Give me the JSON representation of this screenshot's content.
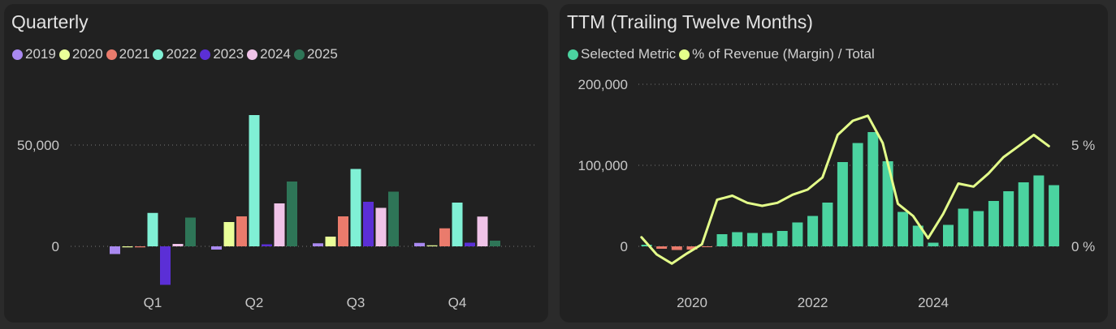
{
  "colors": {
    "2019": "#a989f0",
    "2020": "#eaff99",
    "2021": "#ea7b6c",
    "2022": "#80f0d5",
    "2023": "#5b2fd6",
    "2024": "#f0c3e8",
    "2025": "#2e7557",
    "metric": "#4bd3a0",
    "metric_negative": "#ea7b6c",
    "margin": "#e4ff8a",
    "grid": "#777777"
  },
  "quarterly": {
    "title": "Quarterly",
    "legend": [
      "2019",
      "2020",
      "2021",
      "2022",
      "2023",
      "2024",
      "2025"
    ]
  },
  "ttm": {
    "title": "TTM (Trailing Twelve Months)",
    "legend": [
      "Selected Metric",
      "% of Revenue (Margin) / Total"
    ]
  },
  "chart_data": [
    {
      "type": "bar",
      "title": "Quarterly",
      "categories": [
        "Q1",
        "Q2",
        "Q3",
        "Q4"
      ],
      "series": [
        {
          "name": "2019",
          "values": [
            -3800,
            -1600,
            1500,
            1700
          ]
        },
        {
          "name": "2020",
          "values": [
            -500,
            12000,
            4800,
            500
          ]
        },
        {
          "name": "2021",
          "values": [
            -500,
            14800,
            14800,
            8900
          ]
        },
        {
          "name": "2022",
          "values": [
            16500,
            64800,
            38200,
            21600
          ]
        },
        {
          "name": "2023",
          "values": [
            -19000,
            1000,
            22000,
            1800
          ]
        },
        {
          "name": "2024",
          "values": [
            1200,
            21200,
            19000,
            14700
          ]
        },
        {
          "name": "2025",
          "values": [
            14200,
            32000,
            27000,
            2800
          ]
        }
      ],
      "yticks": [
        0,
        50000
      ],
      "ytick_labels": [
        "0",
        "50,000"
      ],
      "ylim": [
        -20000,
        70000
      ],
      "grid": true,
      "legend_position": "top-left"
    },
    {
      "type": "bar",
      "title": "TTM (Trailing Twelve Months)",
      "series": [
        {
          "name": "Selected Metric",
          "type": "bar",
          "x": [
            "2019-04-01",
            "2019-07-01",
            "2019-10-01",
            "2020-01-01",
            "2020-04-01",
            "2020-07-01",
            "2020-10-01",
            "2021-01-01",
            "2021-04-01",
            "2021-07-01",
            "2021-10-01",
            "2022-01-01",
            "2022-04-01",
            "2022-07-01",
            "2022-10-01",
            "2023-01-01",
            "2023-04-01",
            "2023-07-01",
            "2023-10-01",
            "2024-01-01",
            "2024-04-01",
            "2024-07-01",
            "2024-10-01",
            "2025-01-01",
            "2025-04-01",
            "2025-07-01",
            "2025-10-01",
            "2026-01-01"
          ],
          "values": [
            2000,
            -3000,
            -4500,
            -4000,
            -1000,
            15000,
            17500,
            16500,
            16500,
            19000,
            29500,
            37500,
            54000,
            104000,
            127500,
            141000,
            105000,
            42500,
            25500,
            4500,
            26500,
            46500,
            43500,
            56000,
            68000,
            79000,
            87500,
            75500
          ]
        },
        {
          "name": "% of Revenue (Margin) / Total",
          "type": "line",
          "axis": "right",
          "x": [
            "2019-03-01",
            "2019-06-01",
            "2019-09-01",
            "2019-12-01",
            "2020-03-01",
            "2020-06-01",
            "2020-09-01",
            "2020-12-01",
            "2021-03-01",
            "2021-06-01",
            "2021-09-01",
            "2021-12-01",
            "2022-03-01",
            "2022-06-01",
            "2022-09-01",
            "2022-12-01",
            "2023-03-01",
            "2023-06-01",
            "2023-09-01",
            "2023-12-01",
            "2024-03-01",
            "2024-06-01",
            "2024-09-01",
            "2024-12-01",
            "2025-03-01",
            "2025-06-01",
            "2025-09-01",
            "2025-12-01"
          ],
          "values": [
            0.45,
            -0.4,
            -0.85,
            -0.35,
            0.1,
            2.3,
            2.5,
            2.15,
            2.0,
            2.15,
            2.55,
            2.8,
            3.4,
            5.5,
            6.2,
            6.45,
            5.1,
            2.1,
            1.5,
            0.4,
            1.6,
            3.1,
            2.95,
            3.6,
            4.4,
            4.95,
            5.5,
            4.95
          ]
        }
      ],
      "xticks": [
        "2020",
        "2022",
        "2024"
      ],
      "yticks_left": [
        0,
        100000,
        200000
      ],
      "ytick_labels_left": [
        "0",
        "100,000",
        "200,000"
      ],
      "ylim_left": [
        -15000,
        200000
      ],
      "yticks_right": [
        0,
        5
      ],
      "ytick_labels_right": [
        "0 %",
        "5 %"
      ],
      "ylim_right": [
        -1.2,
        8
      ],
      "grid": true,
      "legend_position": "top-left"
    }
  ]
}
